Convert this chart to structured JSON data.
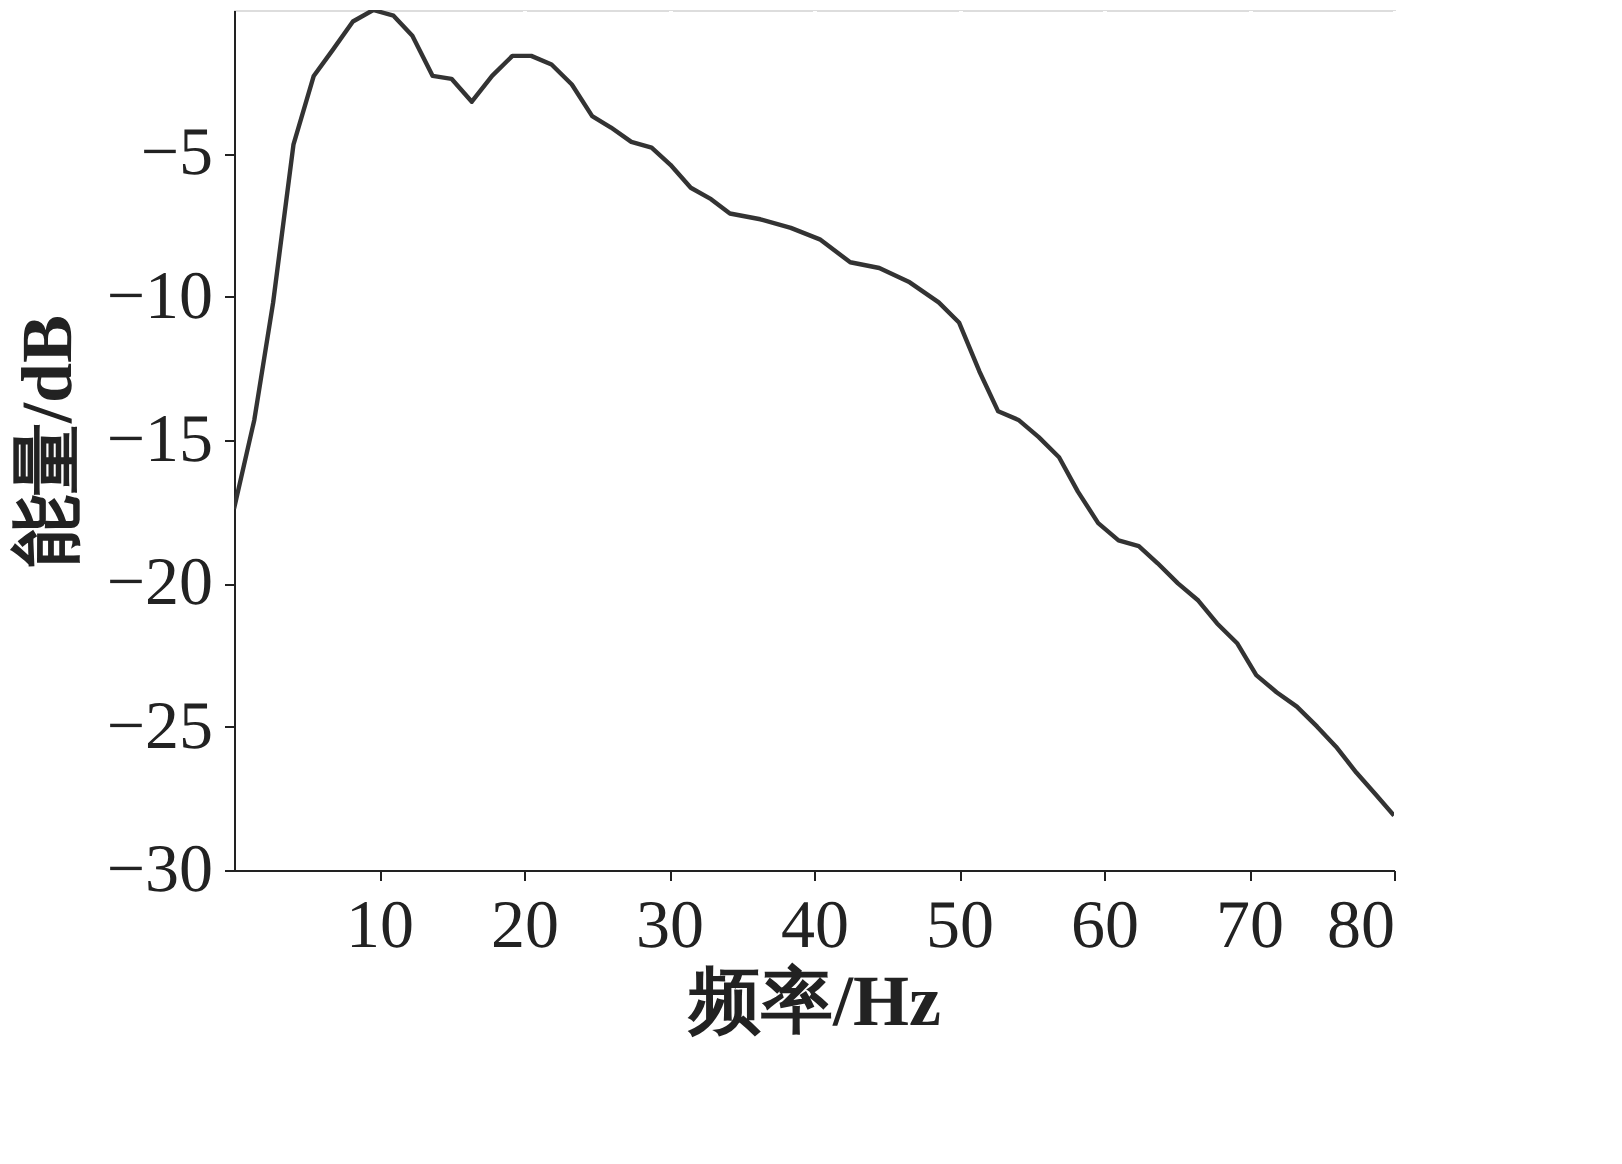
{
  "chart_data": {
    "type": "line",
    "xlabel": "频率/Hz",
    "ylabel": "能量/dB",
    "color": "#333333",
    "x": [
      0,
      1.4,
      2.7,
      4.1,
      5.5,
      6.8,
      8.2,
      9.6,
      11,
      12.3,
      13.7,
      15,
      16.4,
      17.8,
      19.2,
      20.5,
      21.9,
      23.3,
      24.7,
      26,
      27.4,
      28.8,
      30.1,
      31.5,
      32.9,
      34.2,
      36.3,
      38.4,
      40.4,
      42.5,
      44.5,
      46.6,
      48.6,
      50,
      51.4,
      52.7,
      54.1,
      55.5,
      56.9,
      58.2,
      59.6,
      61,
      62.4,
      63.7,
      65.1,
      66.5,
      67.8,
      69.2,
      70.5,
      71.9,
      73.3,
      74.7,
      76,
      77.4,
      78.8,
      80
    ],
    "values": [
      -17.4,
      -14.3,
      -10.2,
      -4.7,
      -2.3,
      -1.4,
      -0.4,
      0,
      -0.2,
      -0.9,
      -2.3,
      -2.4,
      -3.2,
      -2.3,
      -1.6,
      -1.6,
      -1.9,
      -2.6,
      -3.7,
      -4.1,
      -4.6,
      -4.8,
      -5.4,
      -6.2,
      -6.6,
      -7.1,
      -7.3,
      -7.6,
      -8.0,
      -8.8,
      -9.0,
      -9.5,
      -10.2,
      -10.9,
      -12.6,
      -14.0,
      -14.3,
      -14.9,
      -15.6,
      -16.8,
      -17.9,
      -18.5,
      -18.7,
      -19.3,
      -20.0,
      -20.6,
      -21.4,
      -22.1,
      -23.2,
      -23.8,
      -24.3,
      -25.0,
      -25.7,
      -26.6,
      -27.4,
      -28.1
    ],
    "xlim": [
      0,
      80
    ],
    "xticks": [
      10,
      20,
      30,
      40,
      50,
      60,
      70,
      80
    ],
    "ylim": [
      -30,
      0
    ],
    "yticks": [
      {
        "value": -30,
        "label": "−30"
      },
      {
        "value": -25,
        "label": "−25"
      },
      {
        "value": -20,
        "label": "−20"
      },
      {
        "value": -15,
        "label": "−15"
      },
      {
        "value": -10,
        "label": "−10"
      },
      {
        "value": -5,
        "label": "−5"
      }
    ],
    "grid": true,
    "marker": "none",
    "line_style": "solid"
  }
}
